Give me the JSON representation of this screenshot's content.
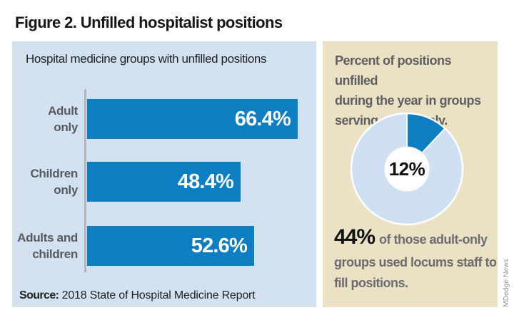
{
  "figure": {
    "title": "Figure 2. Unfilled hospitalist positions"
  },
  "colors": {
    "bar_blue": "#0e7ec2",
    "panel_blue": "#d3e2f0",
    "panel_tan": "#ebe2c6",
    "donut_remainder": "#cfdff2",
    "axis_gray": "#b3b5b8"
  },
  "left_panel": {
    "source_label": "Source:",
    "source_text": " 2018 State of Hospital Medicine Report"
  },
  "right_panel": {
    "intro_lines": [
      "Percent of positions unfilled",
      "during the year in groups",
      "serving adults only."
    ],
    "stat_value": "44%",
    "stat_lines": [
      "of those adult-only",
      "groups used locums staff to",
      "fill positions."
    ]
  },
  "credit": "MDedge News",
  "chart_data": [
    {
      "type": "bar",
      "orientation": "horizontal",
      "title": "Hospital medicine groups with unfilled positions",
      "categories": [
        "Adult only",
        "Children only",
        "Adults and children"
      ],
      "label_lines": [
        [
          "Adult",
          "only"
        ],
        [
          "Children",
          "only"
        ],
        [
          "Adults and",
          "children"
        ]
      ],
      "values": [
        66.4,
        48.4,
        52.6
      ],
      "value_labels": [
        "66.4%",
        "48.4%",
        "52.6%"
      ],
      "xlim": [
        0,
        70
      ],
      "bar_color": "#0e7ec2",
      "grid": false,
      "legend": false
    },
    {
      "type": "pie",
      "subtype": "donut",
      "start_angle_deg": 0,
      "direction": "clockwise",
      "slices": [
        {
          "value": 12,
          "color": "#0e7ec2"
        },
        {
          "value": 88,
          "color": "#cfdff2"
        }
      ],
      "center_label": "12%",
      "legend": false
    }
  ]
}
